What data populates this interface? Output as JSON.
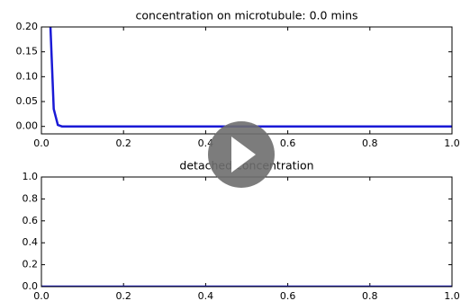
{
  "chart_data": [
    {
      "type": "line",
      "title": "concentration on microtubule: 0.0 mins",
      "x": [
        0.022,
        0.03,
        0.04,
        0.05,
        1.0
      ],
      "values": [
        0.2,
        0.035,
        0.003,
        0,
        0
      ],
      "color": "#1a1ad6",
      "xlim": [
        0,
        1
      ],
      "ylim": [
        -0.015,
        0.2
      ],
      "xticks": [
        {
          "value": 0,
          "label": "0.0"
        },
        0.2,
        0.4,
        0.6,
        0.8,
        {
          "value": 1,
          "label": "1.0"
        }
      ],
      "yticks": [
        {
          "value": 0,
          "label": "0.00"
        },
        0.05,
        {
          "value": 0.1,
          "label": "0.10"
        },
        0.15,
        {
          "value": 0.2,
          "label": "0.20"
        }
      ]
    },
    {
      "type": "line",
      "title": "detached concentration",
      "x": [
        0,
        1.0
      ],
      "values": [
        0,
        0
      ],
      "color": "#1a1ad6",
      "xlim": [
        0,
        1
      ],
      "ylim": [
        0,
        1
      ],
      "xticks": [
        {
          "value": 0,
          "label": "0.0"
        },
        0.2,
        0.4,
        0.6,
        0.8,
        {
          "value": 1,
          "label": "1.0"
        }
      ],
      "yticks": [
        {
          "value": 0,
          "label": "0.0"
        },
        0.2,
        0.4,
        0.6,
        0.8,
        {
          "value": 1,
          "label": "1.0"
        }
      ]
    }
  ]
}
